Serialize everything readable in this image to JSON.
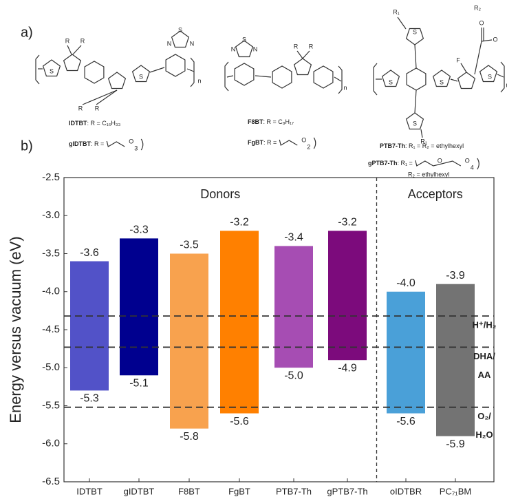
{
  "panel_labels": [
    "a)",
    "b)"
  ],
  "structures": [
    {
      "atoms": [
        "R",
        "R",
        "R",
        "R",
        "S",
        "S",
        "S",
        "N",
        "N",
        "n"
      ],
      "captions": [
        {
          "name": "IDTBT",
          "text": ": R = C₁₆H₃₃"
        },
        {
          "name": "gIDTBT",
          "text": ": R =",
          "chain": [
            "O",
            "3"
          ]
        }
      ]
    },
    {
      "atoms": [
        "S",
        "N",
        "N",
        "R",
        "R",
        "n"
      ],
      "captions": [
        {
          "name": "F8BT",
          "text": ": R = C₈H₁₇"
        },
        {
          "name": "FgBT",
          "text": ": R =",
          "chain": [
            "O",
            "2"
          ]
        }
      ]
    },
    {
      "atoms": [
        "S",
        "S",
        "S",
        "S",
        "S",
        "F",
        "O",
        "O",
        "R₁",
        "R₁",
        "R₂",
        "n"
      ],
      "captions": [
        {
          "name": "PTB7-Th",
          "text": ": R₁ = R₂ = ethylhexyl"
        },
        {
          "name": "gPTB7-Th",
          "text": ": R₁ =",
          "chain": [
            "O",
            "O",
            "4"
          ],
          "extra": "R₂ = ethylhexyl"
        }
      ]
    }
  ],
  "chart_data": {
    "type": "floating-bar",
    "y_label": "Energy versus vacuum (eV)",
    "categories": [
      "IDTBT",
      "gIDTBT",
      "F8BT",
      "FgBT",
      "PTB7-Th",
      "gPTB7-Th",
      "oIDTBR",
      "PC₇₁BM"
    ],
    "colors": [
      "#5252c8",
      "#00008f",
      "#f8a24e",
      "#ff8000",
      "#a64db3",
      "#7c0b7c",
      "#4aa0d8",
      "#737373"
    ],
    "series": [
      {
        "values": [
          -3.6,
          -3.3,
          -3.5,
          -3.2,
          -3.4,
          -3.2,
          -4.0,
          -3.9
        ],
        "value_labels": [
          "-3.6",
          "-3.3",
          "-3.5",
          "-3.2",
          "-3.4",
          "-3.2",
          "-4.0",
          "-3.9"
        ]
      },
      {
        "values": [
          -5.3,
          -5.1,
          -5.8,
          -5.6,
          -5.0,
          -4.9,
          -5.6,
          -5.9
        ],
        "value_labels": [
          "-5.3",
          "-5.1",
          "-5.8",
          "-5.6",
          "-5.0",
          "-4.9",
          "-5.6",
          "-5.9"
        ]
      }
    ],
    "sections": [
      {
        "label": "Donors",
        "count": 6
      },
      {
        "label": "Acceptors",
        "count": 2
      }
    ],
    "reference_lines": [
      {
        "value": -4.32,
        "label": [
          "H⁺/H₂"
        ]
      },
      {
        "value": -4.73,
        "label": [
          "DHA/",
          "AA"
        ]
      },
      {
        "value": -5.52,
        "label": [
          "O₂/",
          "H₂O"
        ]
      }
    ],
    "ylim": [
      -6.5,
      -2.5
    ],
    "yticks": [
      -2.5,
      {
        "value": -3,
        "label": "-3.0"
      },
      -3.5,
      {
        "value": -4,
        "label": "-4.0"
      },
      -4.5,
      {
        "value": -5,
        "label": "-5.0"
      },
      -5.5,
      {
        "value": -6,
        "label": "-6.0"
      },
      -6.5
    ]
  }
}
